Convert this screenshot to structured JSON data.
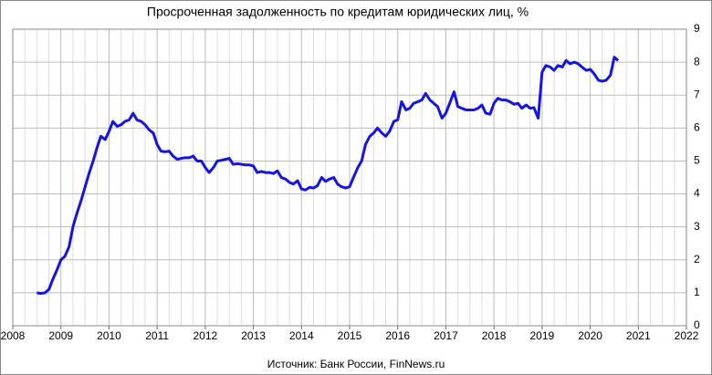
{
  "chart_data": {
    "type": "line",
    "title": "Просроченная задолженность по кредитам юридических лиц, %",
    "source": "Источник: Банк России, FinNews.ru",
    "x": [
      2008.5,
      2008.58,
      2008.67,
      2008.75,
      2008.83,
      2008.92,
      2009.0,
      2009.08,
      2009.17,
      2009.25,
      2009.33,
      2009.42,
      2009.5,
      2009.58,
      2009.67,
      2009.75,
      2009.83,
      2009.92,
      2010.0,
      2010.08,
      2010.17,
      2010.25,
      2010.33,
      2010.42,
      2010.5,
      2010.58,
      2010.67,
      2010.75,
      2010.83,
      2010.92,
      2011.0,
      2011.08,
      2011.17,
      2011.25,
      2011.33,
      2011.42,
      2011.5,
      2011.58,
      2011.67,
      2011.75,
      2011.83,
      2011.92,
      2012.0,
      2012.08,
      2012.17,
      2012.25,
      2012.33,
      2012.42,
      2012.5,
      2012.58,
      2012.67,
      2012.75,
      2012.83,
      2012.92,
      2013.0,
      2013.08,
      2013.17,
      2013.25,
      2013.33,
      2013.42,
      2013.5,
      2013.58,
      2013.67,
      2013.75,
      2013.83,
      2013.92,
      2014.0,
      2014.08,
      2014.17,
      2014.25,
      2014.33,
      2014.42,
      2014.5,
      2014.58,
      2014.67,
      2014.75,
      2014.83,
      2014.92,
      2015.0,
      2015.08,
      2015.17,
      2015.25,
      2015.33,
      2015.42,
      2015.5,
      2015.58,
      2015.67,
      2015.75,
      2015.83,
      2015.92,
      2016.0,
      2016.08,
      2016.17,
      2016.25,
      2016.33,
      2016.42,
      2016.5,
      2016.58,
      2016.67,
      2016.75,
      2016.83,
      2016.92,
      2017.0,
      2017.08,
      2017.17,
      2017.25,
      2017.33,
      2017.42,
      2017.5,
      2017.58,
      2017.67,
      2017.75,
      2017.83,
      2017.92,
      2018.0,
      2018.08,
      2018.17,
      2018.25,
      2018.33,
      2018.42,
      2018.5,
      2018.58,
      2018.67,
      2018.75,
      2018.83,
      2018.92,
      2019.0,
      2019.08,
      2019.17,
      2019.25,
      2019.33,
      2019.42,
      2019.5,
      2019.58,
      2019.67,
      2019.75,
      2019.83,
      2019.92,
      2020.0,
      2020.08,
      2020.17,
      2020.25,
      2020.33,
      2020.42,
      2020.5,
      2020.58
    ],
    "series": [
      {
        "name": "Просроченная задолженность",
        "color": "#1414e6",
        "values": [
          1.0,
          0.98,
          1.0,
          1.1,
          1.4,
          1.7,
          2.0,
          2.1,
          2.4,
          3.0,
          3.4,
          3.8,
          4.2,
          4.6,
          5.0,
          5.4,
          5.75,
          5.65,
          5.9,
          6.2,
          6.05,
          6.1,
          6.2,
          6.25,
          6.45,
          6.25,
          6.2,
          6.1,
          5.95,
          5.85,
          5.5,
          5.3,
          5.28,
          5.3,
          5.15,
          5.05,
          5.08,
          5.1,
          5.1,
          5.15,
          5.0,
          5.0,
          4.8,
          4.65,
          4.8,
          5.0,
          5.02,
          5.05,
          5.08,
          4.9,
          4.92,
          4.9,
          4.88,
          4.88,
          4.85,
          4.65,
          4.68,
          4.65,
          4.65,
          4.62,
          4.7,
          4.5,
          4.45,
          4.35,
          4.3,
          4.4,
          4.15,
          4.12,
          4.2,
          4.18,
          4.25,
          4.5,
          4.38,
          4.45,
          4.5,
          4.3,
          4.22,
          4.18,
          4.22,
          4.5,
          4.8,
          5.0,
          5.5,
          5.75,
          5.85,
          6.0,
          5.85,
          5.75,
          5.9,
          6.2,
          6.25,
          6.8,
          6.55,
          6.6,
          6.75,
          6.8,
          6.85,
          7.05,
          6.85,
          6.75,
          6.65,
          6.3,
          6.45,
          6.75,
          7.1,
          6.65,
          6.6,
          6.55,
          6.55,
          6.55,
          6.6,
          6.7,
          6.45,
          6.42,
          6.75,
          6.9,
          6.85,
          6.85,
          6.8,
          6.72,
          6.75,
          6.6,
          6.7,
          6.6,
          6.62,
          6.3,
          7.7,
          7.9,
          7.85,
          7.75,
          7.9,
          7.85,
          8.05,
          7.95,
          8.0,
          7.95,
          7.85,
          7.75,
          7.78,
          7.65,
          7.45,
          7.42,
          7.45,
          7.6,
          8.15,
          8.05
        ]
      }
    ],
    "xlim": [
      2008,
      2022
    ],
    "xticks": [
      2008,
      2009,
      2010,
      2011,
      2012,
      2013,
      2014,
      2015,
      2016,
      2017,
      2018,
      2019,
      2020,
      2021,
      2022
    ],
    "ylim": [
      0,
      9
    ],
    "yticks": [
      0,
      1,
      2,
      3,
      4,
      5,
      6,
      7,
      8,
      9
    ],
    "grid": true
  }
}
